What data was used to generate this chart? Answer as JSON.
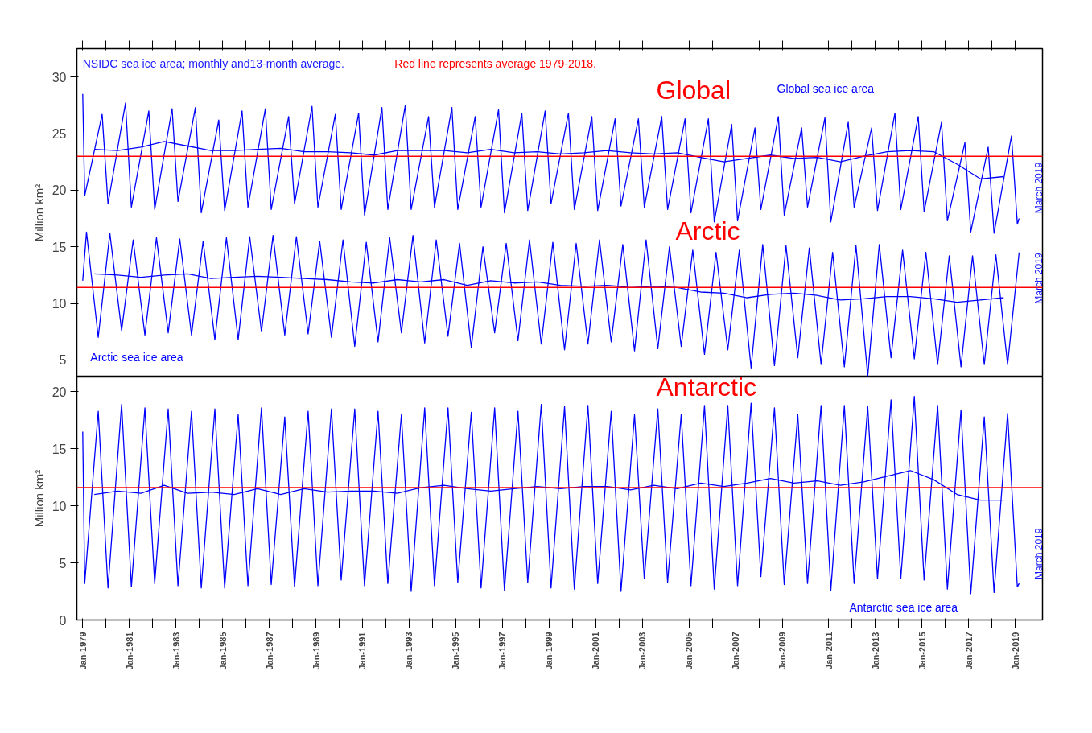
{
  "chart_data": [
    {
      "type": "line",
      "title": "NSIDC sea ice area; monthly and13-month average.",
      "subtitle": "Red line represents average 1979-2018.",
      "ylabel": "Million km²",
      "xlim": [
        "1978-10",
        "2020-03"
      ],
      "ylim": [
        3.5,
        32.5
      ],
      "yticks": [
        5,
        10,
        15,
        20,
        25,
        30
      ],
      "tick_labels": "y",
      "xticks": [
        {
          "value": "1979-01",
          "label": null
        },
        {
          "value": "1980-01",
          "label": null
        },
        {
          "value": "1981-01",
          "label": null
        },
        {
          "value": "1982-01",
          "label": null
        },
        {
          "value": "1983-01",
          "label": null
        },
        {
          "value": "1984-01",
          "label": null
        },
        {
          "value": "1985-01",
          "label": null
        },
        {
          "value": "1986-01",
          "label": null
        },
        {
          "value": "1987-01",
          "label": null
        },
        {
          "value": "1988-01",
          "label": null
        },
        {
          "value": "1989-01",
          "label": null
        },
        {
          "value": "1990-01",
          "label": null
        },
        {
          "value": "1991-01",
          "label": null
        },
        {
          "value": "1992-01",
          "label": null
        },
        {
          "value": "1993-01",
          "label": null
        },
        {
          "value": "1994-01",
          "label": null
        },
        {
          "value": "1995-01",
          "label": null
        },
        {
          "value": "1996-01",
          "label": null
        },
        {
          "value": "1997-01",
          "label": null
        },
        {
          "value": "1998-01",
          "label": null
        },
        {
          "value": "1999-01",
          "label": null
        },
        {
          "value": "2000-01",
          "label": null
        },
        {
          "value": "2001-01",
          "label": null
        },
        {
          "value": "2002-01",
          "label": null
        },
        {
          "value": "2003-01",
          "label": null
        },
        {
          "value": "2004-01",
          "label": null
        },
        {
          "value": "2005-01",
          "label": null
        },
        {
          "value": "2006-01",
          "label": null
        },
        {
          "value": "2007-01",
          "label": null
        },
        {
          "value": "2008-01",
          "label": null
        },
        {
          "value": "2009-01",
          "label": null
        },
        {
          "value": "2010-01",
          "label": null
        },
        {
          "value": "2011-01",
          "label": null
        },
        {
          "value": "2012-01",
          "label": null
        },
        {
          "value": "2013-01",
          "label": null
        },
        {
          "value": "2014-01",
          "label": null
        },
        {
          "value": "2015-01",
          "label": null
        },
        {
          "value": "2016-01",
          "label": null
        },
        {
          "value": "2017-01",
          "label": null
        },
        {
          "value": "2018-01",
          "label": null
        },
        {
          "value": "2019-01",
          "label": null
        }
      ],
      "ref_lines": [
        {
          "axis": "y",
          "value": 23.0,
          "color": "#ff0000"
        },
        {
          "axis": "y",
          "value": 11.4,
          "color": "#ff0000"
        }
      ],
      "annotations": [
        "Global",
        "Arctic",
        {
          "text": "March 2019",
          "x": "2019-03",
          "y": 20.2
        },
        {
          "text": "March 2019",
          "x": "2019-03",
          "y": 12.2
        }
      ],
      "series": [
        {
          "name": "Global sea ice area",
          "color": "#0000ff",
          "x": [
            "1979-01",
            "1979-02",
            "1979-11",
            "1980-02",
            "1980-11",
            "1981-02",
            "1981-11",
            "1982-02",
            "1982-11",
            "1983-02",
            "1983-11",
            "1984-02",
            "1984-11",
            "1985-02",
            "1985-11",
            "1986-02",
            "1986-11",
            "1987-02",
            "1987-11",
            "1988-02",
            "1988-11",
            "1989-02",
            "1989-11",
            "1990-02",
            "1990-11",
            "1991-02",
            "1991-11",
            "1992-02",
            "1992-11",
            "1993-02",
            "1993-11",
            "1994-02",
            "1994-11",
            "1995-02",
            "1995-11",
            "1996-02",
            "1996-11",
            "1997-02",
            "1997-11",
            "1998-02",
            "1998-11",
            "1999-02",
            "1999-11",
            "2000-02",
            "2000-11",
            "2001-02",
            "2001-11",
            "2002-02",
            "2002-11",
            "2003-02",
            "2003-11",
            "2004-02",
            "2004-11",
            "2005-02",
            "2005-11",
            "2006-02",
            "2006-11",
            "2007-02",
            "2007-11",
            "2008-02",
            "2008-11",
            "2009-02",
            "2009-11",
            "2010-02",
            "2010-11",
            "2011-02",
            "2011-11",
            "2012-02",
            "2012-11",
            "2013-02",
            "2013-11",
            "2014-02",
            "2014-11",
            "2015-02",
            "2015-11",
            "2016-02",
            "2016-11",
            "2017-02",
            "2017-11",
            "2018-02",
            "2018-11",
            "2019-02",
            "2019-03"
          ],
          "values": [
            28.5,
            19.5,
            26.7,
            18.8,
            27.7,
            18.5,
            27.0,
            18.3,
            27.2,
            19.0,
            27.3,
            18.0,
            26.2,
            18.2,
            27.0,
            18.5,
            27.2,
            18.3,
            26.5,
            18.8,
            27.4,
            18.5,
            26.7,
            18.3,
            26.8,
            17.8,
            27.3,
            18.3,
            27.5,
            18.3,
            26.5,
            18.5,
            27.3,
            18.3,
            26.5,
            18.5,
            27.1,
            18.0,
            26.8,
            18.2,
            27.0,
            18.8,
            26.8,
            18.3,
            26.5,
            18.2,
            26.3,
            18.6,
            26.3,
            18.5,
            26.5,
            18.3,
            26.3,
            18.0,
            26.3,
            17.2,
            25.8,
            17.3,
            25.5,
            18.3,
            26.5,
            17.8,
            25.5,
            18.5,
            26.4,
            17.2,
            26.0,
            18.5,
            25.5,
            18.2,
            26.8,
            18.3,
            26.5,
            18.1,
            26.0,
            17.3,
            24.2,
            16.3,
            23.8,
            16.2,
            24.8,
            17.0,
            17.5
          ]
        },
        {
          "color": "#0000ff",
          "x": [
            "1979-07",
            "1980-07",
            "1981-07",
            "1982-07",
            "1983-07",
            "1984-07",
            "1985-07",
            "1986-07",
            "1987-07",
            "1988-07",
            "1989-07",
            "1990-07",
            "1991-07",
            "1992-07",
            "1993-07",
            "1994-07",
            "1995-07",
            "1996-07",
            "1997-07",
            "1998-07",
            "1999-07",
            "2000-07",
            "2001-07",
            "2002-07",
            "2003-07",
            "2004-07",
            "2005-07",
            "2006-07",
            "2007-07",
            "2008-07",
            "2009-07",
            "2010-07",
            "2011-07",
            "2012-07",
            "2013-07",
            "2014-07",
            "2015-07",
            "2016-07",
            "2017-07",
            "2018-07"
          ],
          "values": [
            23.6,
            23.5,
            23.8,
            24.3,
            23.9,
            23.5,
            23.5,
            23.6,
            23.7,
            23.4,
            23.4,
            23.3,
            23.1,
            23.5,
            23.5,
            23.5,
            23.3,
            23.6,
            23.3,
            23.4,
            23.2,
            23.3,
            23.5,
            23.3,
            23.2,
            23.3,
            22.9,
            22.5,
            22.8,
            23.1,
            22.8,
            22.9,
            22.5,
            23.0,
            23.4,
            23.5,
            23.4,
            22.3,
            21.0,
            21.2
          ]
        },
        {
          "name": "Arctic sea ice area",
          "color": "#0000ff",
          "x": [
            "1979-01",
            "1979-03",
            "1979-09",
            "1980-03",
            "1980-09",
            "1981-03",
            "1981-09",
            "1982-03",
            "1982-09",
            "1983-03",
            "1983-09",
            "1984-03",
            "1984-09",
            "1985-03",
            "1985-09",
            "1986-03",
            "1986-09",
            "1987-03",
            "1987-09",
            "1988-03",
            "1988-09",
            "1989-03",
            "1989-09",
            "1990-03",
            "1990-09",
            "1991-03",
            "1991-09",
            "1992-03",
            "1992-09",
            "1993-03",
            "1993-09",
            "1994-03",
            "1994-09",
            "1995-03",
            "1995-09",
            "1996-03",
            "1996-09",
            "1997-03",
            "1997-09",
            "1998-03",
            "1998-09",
            "1999-03",
            "1999-09",
            "2000-03",
            "2000-09",
            "2001-03",
            "2001-09",
            "2002-03",
            "2002-09",
            "2003-03",
            "2003-09",
            "2004-03",
            "2004-09",
            "2005-03",
            "2005-09",
            "2006-03",
            "2006-09",
            "2007-03",
            "2007-09",
            "2008-03",
            "2008-09",
            "2009-03",
            "2009-09",
            "2010-03",
            "2010-09",
            "2011-03",
            "2011-09",
            "2012-03",
            "2012-09",
            "2013-03",
            "2013-09",
            "2014-03",
            "2014-09",
            "2015-03",
            "2015-09",
            "2016-03",
            "2016-09",
            "2017-03",
            "2017-09",
            "2018-03",
            "2018-09",
            "2019-03"
          ],
          "values": [
            12.0,
            16.3,
            7.0,
            16.2,
            7.6,
            15.6,
            7.2,
            15.8,
            7.4,
            15.7,
            7.2,
            15.5,
            6.8,
            15.8,
            6.8,
            15.9,
            7.5,
            16.0,
            7.2,
            15.9,
            7.3,
            15.5,
            7.0,
            15.6,
            6.2,
            15.4,
            6.6,
            15.8,
            7.4,
            16.0,
            6.5,
            15.6,
            7.1,
            15.3,
            6.1,
            15.0,
            7.4,
            15.3,
            6.7,
            15.6,
            6.4,
            15.4,
            5.9,
            15.3,
            6.4,
            15.6,
            6.6,
            15.2,
            5.8,
            15.6,
            6.0,
            15.0,
            6.2,
            14.7,
            5.5,
            14.5,
            5.9,
            14.7,
            4.3,
            15.2,
            4.5,
            15.1,
            5.2,
            14.9,
            4.6,
            14.5,
            4.4,
            15.1,
            3.6,
            15.2,
            5.2,
            14.7,
            5.1,
            14.5,
            4.6,
            14.2,
            4.4,
            14.2,
            4.6,
            14.3,
            4.6,
            14.5
          ]
        },
        {
          "color": "#0000ff",
          "x": [
            "1979-07",
            "1980-07",
            "1981-07",
            "1982-07",
            "1983-07",
            "1984-07",
            "1985-07",
            "1986-07",
            "1987-07",
            "1988-07",
            "1989-07",
            "1990-07",
            "1991-07",
            "1992-07",
            "1993-07",
            "1994-07",
            "1995-07",
            "1996-07",
            "1997-07",
            "1998-07",
            "1999-07",
            "2000-07",
            "2001-07",
            "2002-07",
            "2003-07",
            "2004-07",
            "2005-07",
            "2006-07",
            "2007-07",
            "2008-07",
            "2009-07",
            "2010-07",
            "2011-07",
            "2012-07",
            "2013-07",
            "2014-07",
            "2015-07",
            "2016-07",
            "2017-07",
            "2018-07"
          ],
          "values": [
            12.6,
            12.5,
            12.3,
            12.5,
            12.6,
            12.2,
            12.3,
            12.4,
            12.3,
            12.2,
            12.1,
            11.9,
            11.8,
            12.1,
            11.9,
            12.1,
            11.6,
            12.0,
            11.8,
            11.9,
            11.6,
            11.5,
            11.6,
            11.4,
            11.5,
            11.4,
            11.0,
            10.9,
            10.5,
            10.8,
            10.9,
            10.7,
            10.3,
            10.4,
            10.6,
            10.6,
            10.4,
            10.1,
            10.3,
            10.5
          ]
        }
      ]
    },
    {
      "type": "line",
      "ylabel": "Million km²",
      "xlim": [
        "1978-10",
        "2020-03"
      ],
      "ylim": [
        0,
        21.3
      ],
      "yticks": [
        0,
        5,
        10,
        15,
        20
      ],
      "xticks": [
        {
          "value": "1979-01",
          "label": "Jan-1979"
        },
        {
          "value": "1980-01",
          "label": null
        },
        {
          "value": "1981-01",
          "label": "Jan-1981"
        },
        {
          "value": "1982-01",
          "label": null
        },
        {
          "value": "1983-01",
          "label": "Jan-1983"
        },
        {
          "value": "1984-01",
          "label": null
        },
        {
          "value": "1985-01",
          "label": "Jan-1985"
        },
        {
          "value": "1986-01",
          "label": null
        },
        {
          "value": "1987-01",
          "label": "Jan-1987"
        },
        {
          "value": "1988-01",
          "label": null
        },
        {
          "value": "1989-01",
          "label": "Jan-1989"
        },
        {
          "value": "1990-01",
          "label": null
        },
        {
          "value": "1991-01",
          "label": "Jan-1991"
        },
        {
          "value": "1992-01",
          "label": null
        },
        {
          "value": "1993-01",
          "label": "Jan-1993"
        },
        {
          "value": "1994-01",
          "label": null
        },
        {
          "value": "1995-01",
          "label": "Jan-1995"
        },
        {
          "value": "1996-01",
          "label": null
        },
        {
          "value": "1997-01",
          "label": "Jan-1997"
        },
        {
          "value": "1998-01",
          "label": null
        },
        {
          "value": "1999-01",
          "label": "Jan-1999"
        },
        {
          "value": "2000-01",
          "label": null
        },
        {
          "value": "2001-01",
          "label": "Jan-2001"
        },
        {
          "value": "2002-01",
          "label": null
        },
        {
          "value": "2003-01",
          "label": "Jan-2003"
        },
        {
          "value": "2004-01",
          "label": null
        },
        {
          "value": "2005-01",
          "label": "Jan-2005"
        },
        {
          "value": "2006-01",
          "label": null
        },
        {
          "value": "2007-01",
          "label": "Jan-2007"
        },
        {
          "value": "2008-01",
          "label": null
        },
        {
          "value": "2009-01",
          "label": "Jan-2009"
        },
        {
          "value": "2010-01",
          "label": null
        },
        {
          "value": "2011-01",
          "label": "Jan-2011"
        },
        {
          "value": "2012-01",
          "label": null
        },
        {
          "value": "2013-01",
          "label": "Jan-2013"
        },
        {
          "value": "2014-01",
          "label": null
        },
        {
          "value": "2015-01",
          "label": "Jan-2015"
        },
        {
          "value": "2016-01",
          "label": null
        },
        {
          "value": "2017-01",
          "label": "Jan-2017"
        },
        {
          "value": "2018-01",
          "label": null
        },
        {
          "value": "2019-01",
          "label": "Jan-2019"
        }
      ],
      "ref_lines": [
        {
          "axis": "y",
          "value": 11.6,
          "color": "#ff0000"
        }
      ],
      "annotations": [
        "Antarctic",
        {
          "text": "March 2019",
          "x": "2019-03",
          "y": 5.8
        }
      ],
      "series": [
        {
          "name": "Antarctic sea ice area",
          "color": "#0000ff",
          "x": [
            "1979-01",
            "1979-02",
            "1979-09",
            "1980-02",
            "1980-09",
            "1981-02",
            "1981-09",
            "1982-02",
            "1982-09",
            "1983-02",
            "1983-09",
            "1984-02",
            "1984-09",
            "1985-02",
            "1985-09",
            "1986-02",
            "1986-09",
            "1987-02",
            "1987-09",
            "1988-02",
            "1988-09",
            "1989-02",
            "1989-09",
            "1990-02",
            "1990-09",
            "1991-02",
            "1991-09",
            "1992-02",
            "1992-09",
            "1993-02",
            "1993-09",
            "1994-02",
            "1994-09",
            "1995-02",
            "1995-09",
            "1996-02",
            "1996-09",
            "1997-02",
            "1997-09",
            "1998-02",
            "1998-09",
            "1999-02",
            "1999-09",
            "2000-02",
            "2000-09",
            "2001-02",
            "2001-09",
            "2002-02",
            "2002-09",
            "2003-02",
            "2003-09",
            "2004-02",
            "2004-09",
            "2005-02",
            "2005-09",
            "2006-02",
            "2006-09",
            "2007-02",
            "2007-09",
            "2008-02",
            "2008-09",
            "2009-02",
            "2009-09",
            "2010-02",
            "2010-09",
            "2011-02",
            "2011-09",
            "2012-02",
            "2012-09",
            "2013-02",
            "2013-09",
            "2014-02",
            "2014-09",
            "2015-02",
            "2015-09",
            "2016-02",
            "2016-09",
            "2017-02",
            "2017-09",
            "2018-02",
            "2018-09",
            "2019-02",
            "2019-03"
          ],
          "values": [
            16.5,
            3.2,
            18.3,
            2.8,
            18.9,
            2.9,
            18.6,
            3.2,
            18.5,
            3.0,
            18.3,
            2.8,
            18.5,
            2.8,
            18.0,
            3.0,
            18.6,
            3.1,
            17.8,
            2.9,
            18.3,
            3.0,
            18.5,
            3.5,
            18.5,
            3.0,
            18.3,
            3.2,
            18.0,
            2.5,
            18.6,
            3.0,
            18.6,
            3.3,
            18.2,
            2.8,
            18.6,
            2.6,
            18.3,
            3.3,
            18.9,
            2.8,
            18.7,
            2.7,
            18.8,
            3.2,
            18.3,
            2.5,
            18.0,
            3.6,
            18.5,
            3.3,
            18.0,
            3.0,
            18.8,
            2.7,
            18.8,
            3.0,
            19.0,
            3.8,
            18.6,
            3.1,
            18.0,
            3.2,
            18.8,
            2.6,
            18.8,
            3.2,
            18.7,
            3.6,
            19.3,
            3.6,
            19.6,
            3.5,
            18.8,
            2.7,
            18.4,
            2.3,
            17.8,
            2.4,
            18.1,
            2.9,
            3.2
          ]
        },
        {
          "color": "#0000ff",
          "x": [
            "1979-07",
            "1980-07",
            "1981-07",
            "1982-07",
            "1983-07",
            "1984-07",
            "1985-07",
            "1986-07",
            "1987-07",
            "1988-07",
            "1989-07",
            "1990-07",
            "1991-07",
            "1992-07",
            "1993-07",
            "1994-07",
            "1995-07",
            "1996-07",
            "1997-07",
            "1998-07",
            "1999-07",
            "2000-07",
            "2001-07",
            "2002-07",
            "2003-07",
            "2004-07",
            "2005-07",
            "2006-07",
            "2007-07",
            "2008-07",
            "2009-07",
            "2010-07",
            "2011-07",
            "2012-07",
            "2013-07",
            "2014-07",
            "2015-07",
            "2016-07",
            "2017-07",
            "2018-07"
          ],
          "values": [
            11.0,
            11.3,
            11.1,
            11.8,
            11.1,
            11.2,
            11.0,
            11.5,
            11.0,
            11.5,
            11.2,
            11.3,
            11.3,
            11.1,
            11.6,
            11.8,
            11.5,
            11.3,
            11.5,
            11.7,
            11.5,
            11.7,
            11.7,
            11.4,
            11.8,
            11.5,
            12.0,
            11.7,
            12.0,
            12.4,
            12.0,
            12.2,
            11.8,
            12.1,
            12.6,
            13.1,
            12.3,
            11.0,
            10.5,
            10.5
          ]
        }
      ]
    }
  ]
}
